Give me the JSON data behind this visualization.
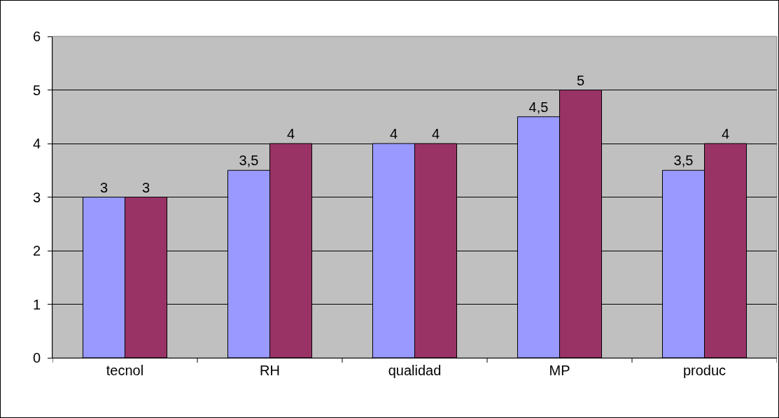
{
  "chart_data": {
    "type": "bar",
    "categories": [
      "tecnol",
      "RH",
      "qualidad",
      "MP",
      "produc"
    ],
    "series": [
      {
        "color": "#9999ff",
        "values": [
          3,
          3.5,
          4,
          4.5,
          3.5
        ],
        "value_labels": [
          "3",
          "3,5",
          "4",
          "4,5",
          "3,5"
        ]
      },
      {
        "color": "#993366",
        "values": [
          3,
          4,
          4,
          5,
          4
        ],
        "value_labels": [
          "3",
          "4",
          "4",
          "5",
          "4"
        ]
      }
    ],
    "ylim": [
      0,
      6
    ],
    "yticks": [
      0,
      1,
      2,
      3,
      4,
      5,
      6
    ],
    "grid": "y",
    "legend": false
  }
}
